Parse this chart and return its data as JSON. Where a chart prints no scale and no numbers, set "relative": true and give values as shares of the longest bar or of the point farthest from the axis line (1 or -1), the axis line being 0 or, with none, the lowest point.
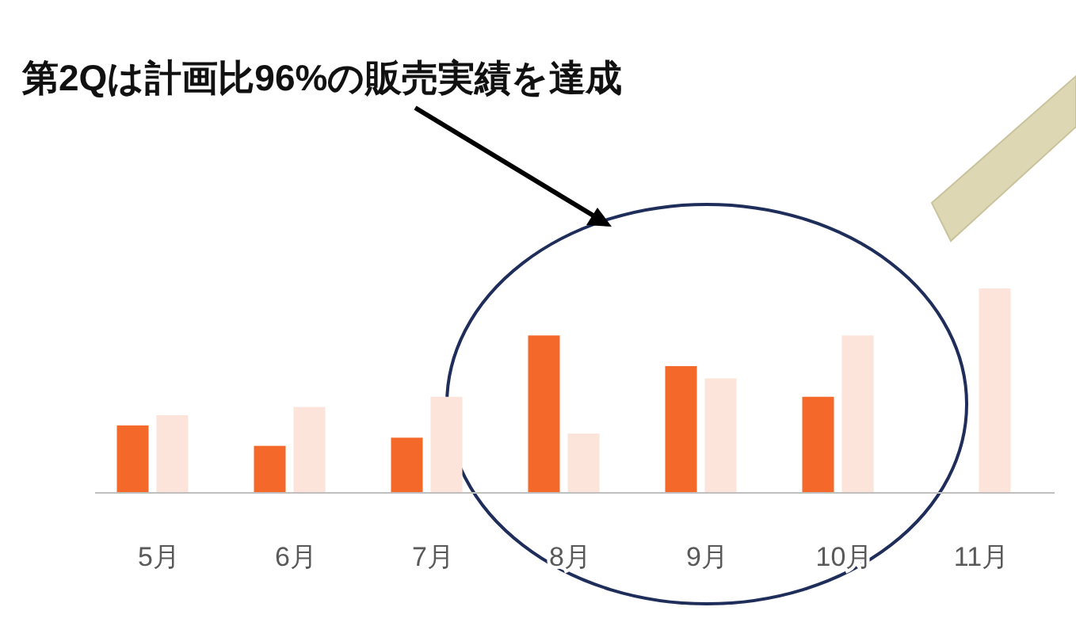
{
  "chart_data": {
    "type": "bar",
    "title": "第2Qは計画比96%の販売実績を達成",
    "categories": [
      "5月",
      "6月",
      "7月",
      "8月",
      "9月",
      "10月",
      "11月"
    ],
    "relative": true,
    "series": [
      {
        "color": "#f4692a",
        "values": [
          0.33,
          0.23,
          0.27,
          0.77,
          0.62,
          0.47,
          null
        ]
      },
      {
        "color": "#fce4da",
        "values": [
          0.38,
          0.42,
          0.47,
          0.29,
          0.56,
          0.77,
          1
        ]
      }
    ]
  }
}
